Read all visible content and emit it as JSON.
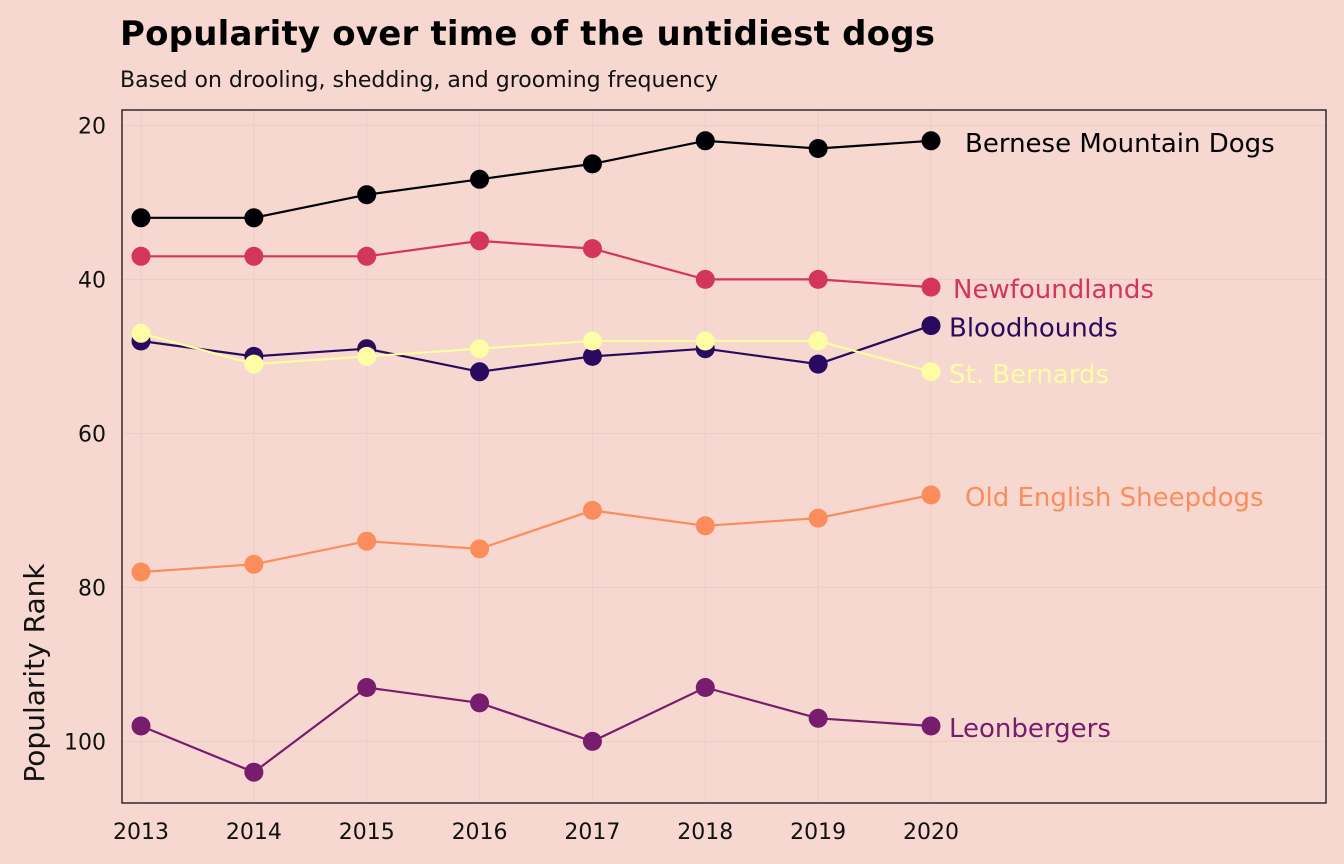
{
  "chart_data": {
    "type": "line",
    "title": "Popularity over time of the untidiest dogs",
    "subtitle": "Based on drooling, shedding, and grooming frequency",
    "xlabel": "",
    "ylabel": "Popularity Rank",
    "x": [
      2013,
      2014,
      2015,
      2016,
      2017,
      2018,
      2019,
      2020
    ],
    "xticks": [
      "2013",
      "2014",
      "2015",
      "2016",
      "2017",
      "2018",
      "2019",
      "2020"
    ],
    "yticks": [
      20,
      40,
      60,
      80,
      100
    ],
    "ylim": [
      108,
      18
    ],
    "y_inverted": true,
    "grid": true,
    "legend": "direct labels at line ends",
    "series": [
      {
        "name": "Bernese Mountain Dogs",
        "color": "#000004",
        "values": [
          32,
          32,
          29,
          27,
          25,
          22,
          23,
          22
        ]
      },
      {
        "name": "Newfoundlands",
        "color": "#d3365a",
        "values": [
          37,
          37,
          37,
          35,
          36,
          40,
          40,
          41
        ]
      },
      {
        "name": "Bloodhounds",
        "color": "#2a0a5e",
        "values": [
          48,
          50,
          49,
          52,
          50,
          49,
          51,
          46
        ]
      },
      {
        "name": "St. Bernards",
        "color": "#fcfda4",
        "values": [
          47,
          51,
          50,
          49,
          48,
          48,
          48,
          52
        ]
      },
      {
        "name": "Old English Sheepdogs",
        "color": "#fb8d5c",
        "values": [
          78,
          77,
          74,
          75,
          70,
          72,
          71,
          68
        ]
      },
      {
        "name": "Leonbergers",
        "color": "#781c6d",
        "values": [
          98,
          104,
          93,
          95,
          100,
          93,
          97,
          98
        ]
      }
    ]
  }
}
